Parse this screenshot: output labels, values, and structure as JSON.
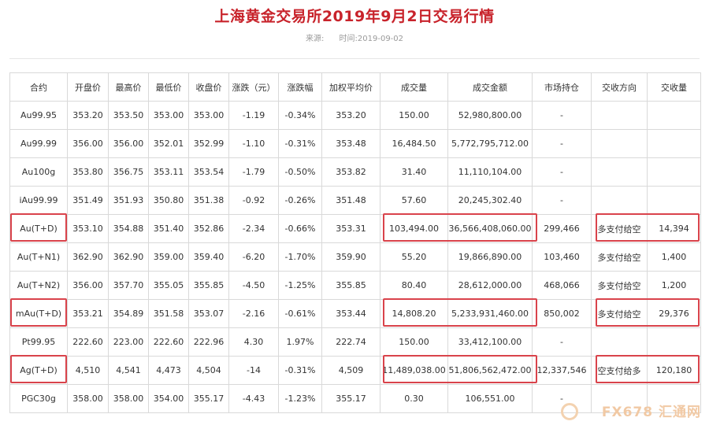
{
  "title": "上海黄金交易所2019年9月2日交易行情",
  "meta": {
    "source_label": "来源:",
    "time_label": "时间:2019-09-02"
  },
  "table": {
    "headers": [
      "合约",
      "开盘价",
      "最高价",
      "最低价",
      "收盘价",
      "涨跌（元）",
      "涨跌幅",
      "加权平均价",
      "成交量",
      "成交金额",
      "市场持仓",
      "交收方向",
      "交收量"
    ],
    "rows": [
      [
        "Au99.95",
        "353.20",
        "353.50",
        "353.00",
        "353.00",
        "-1.19",
        "-0.34%",
        "353.20",
        "150.00",
        "52,980,800.00",
        "-",
        "",
        ""
      ],
      [
        "Au99.99",
        "356.00",
        "356.00",
        "352.01",
        "352.99",
        "-1.10",
        "-0.31%",
        "353.48",
        "16,484.50",
        "5,772,795,712.00",
        "-",
        "",
        ""
      ],
      [
        "Au100g",
        "353.80",
        "356.75",
        "353.11",
        "353.54",
        "-1.79",
        "-0.50%",
        "353.82",
        "31.40",
        "11,110,104.00",
        "-",
        "",
        ""
      ],
      [
        "iAu99.99",
        "351.49",
        "351.93",
        "350.80",
        "351.38",
        "-0.92",
        "-0.26%",
        "351.48",
        "57.60",
        "20,245,302.40",
        "-",
        "",
        ""
      ],
      [
        "Au(T+D)",
        "353.10",
        "354.88",
        "351.40",
        "352.86",
        "-2.34",
        "-0.66%",
        "353.31",
        "103,494.00",
        "36,566,408,060.00",
        "299,466",
        "多支付给空",
        "14,394"
      ],
      [
        "Au(T+N1)",
        "362.90",
        "362.90",
        "359.00",
        "359.40",
        "-6.20",
        "-1.70%",
        "359.90",
        "55.20",
        "19,866,890.00",
        "103,460",
        "多支付给空",
        "1,400"
      ],
      [
        "Au(T+N2)",
        "356.00",
        "357.70",
        "355.05",
        "355.85",
        "-4.50",
        "-1.25%",
        "355.85",
        "80.40",
        "28,612,000.00",
        "468,066",
        "多支付给空",
        "1,200"
      ],
      [
        "mAu(T+D)",
        "353.21",
        "354.89",
        "351.58",
        "353.07",
        "-2.16",
        "-0.61%",
        "353.44",
        "14,808.20",
        "5,233,931,460.00",
        "850,002",
        "多支付给空",
        "29,376"
      ],
      [
        "Pt99.95",
        "222.60",
        "223.00",
        "222.60",
        "222.96",
        "4.30",
        "1.97%",
        "222.74",
        "150.00",
        "33,412,100.00",
        "-",
        "",
        ""
      ],
      [
        "Ag(T+D)",
        "4,510",
        "4,541",
        "4,473",
        "4,504",
        "-14",
        "-0.31%",
        "4,509",
        "11,489,038.00",
        "51,806,562,472.00",
        "12,337,546",
        "空支付给多",
        "120,180"
      ],
      [
        "PGC30g",
        "358.00",
        "358.00",
        "354.00",
        "355.17",
        "-4.43",
        "-1.23%",
        "355.17",
        "0.30",
        "106,551.00",
        "-",
        "",
        ""
      ]
    ]
  },
  "watermark": {
    "text": "FX678 汇通网",
    "color": "#f1c9a4"
  },
  "highlight_color": "#d9434b"
}
